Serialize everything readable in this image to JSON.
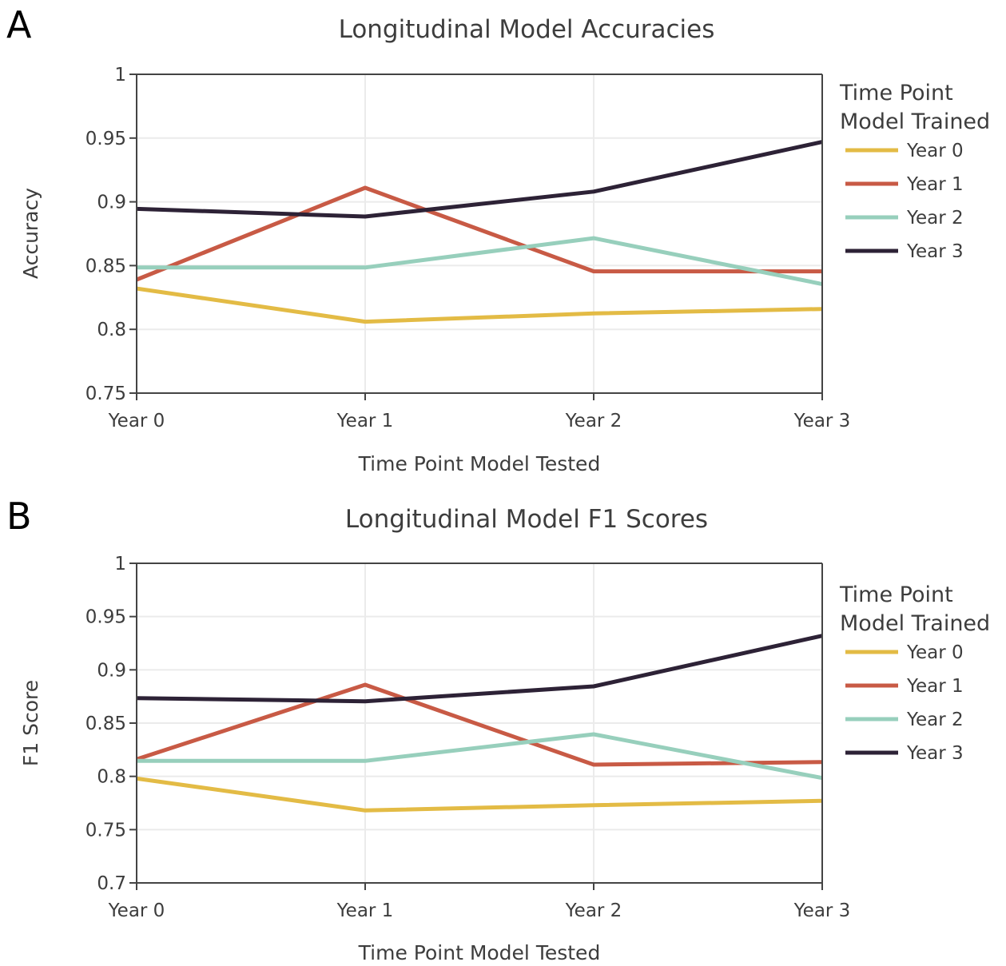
{
  "chart_data": [
    {
      "panel": "A",
      "type": "line",
      "title": "Longitudinal Model Accuracies",
      "xlabel": "Time Point Model Tested",
      "ylabel": "Accuracy",
      "categories": [
        "Year 0",
        "Year 1",
        "Year 2",
        "Year 3"
      ],
      "ylim": [
        0.75,
        1
      ],
      "yticks": [
        0.75,
        0.8,
        0.85,
        0.9,
        0.95,
        1
      ],
      "ytick_labels": [
        "0.75",
        "0.8",
        "0.85",
        "0.9",
        "0.95",
        "1"
      ],
      "grid": true,
      "legend": {
        "title_lines": [
          "Time Point",
          "Model Trained"
        ],
        "placement": "right",
        "last_item_clipped": true
      },
      "series": [
        {
          "name": "Year 0",
          "color": "#e3bb45",
          "values": [
            0.832,
            0.806,
            0.8125,
            0.816
          ]
        },
        {
          "name": "Year 1",
          "color": "#c85a45",
          "values": [
            0.839,
            0.911,
            0.8455,
            0.8455
          ]
        },
        {
          "name": "Year 2",
          "color": "#97cfbc",
          "values": [
            0.8485,
            0.8485,
            0.8715,
            0.8355
          ]
        },
        {
          "name": "Year 3",
          "color": "#2d2236",
          "values": [
            0.8945,
            0.8885,
            0.908,
            0.947
          ]
        }
      ]
    },
    {
      "panel": "B",
      "type": "line",
      "title": "Longitudinal Model F1 Scores",
      "xlabel": "Time Point Model Tested",
      "ylabel": "F1 Score",
      "categories": [
        "Year 0",
        "Year 1",
        "Year 2",
        "Year 3"
      ],
      "ylim": [
        0.7,
        1
      ],
      "yticks": [
        0.7,
        0.75,
        0.8,
        0.85,
        0.9,
        0.95,
        1
      ],
      "ytick_labels": [
        "0.7",
        "0.75",
        "0.8",
        "0.85",
        "0.9",
        "0.95",
        "1"
      ],
      "grid": true,
      "legend": {
        "title_lines": [
          "Time Point",
          "Model Trained"
        ],
        "placement": "right",
        "last_item_clipped": true
      },
      "series": [
        {
          "name": "Year 0",
          "color": "#e3bb45",
          "values": [
            0.798,
            0.768,
            0.773,
            0.777
          ]
        },
        {
          "name": "Year 1",
          "color": "#c85a45",
          "values": [
            0.816,
            0.886,
            0.811,
            0.8135
          ]
        },
        {
          "name": "Year 2",
          "color": "#97cfbc",
          "values": [
            0.8145,
            0.8145,
            0.8395,
            0.7985
          ]
        },
        {
          "name": "Year 3",
          "color": "#2d2236",
          "values": [
            0.8735,
            0.8705,
            0.8845,
            0.932
          ]
        }
      ]
    }
  ]
}
